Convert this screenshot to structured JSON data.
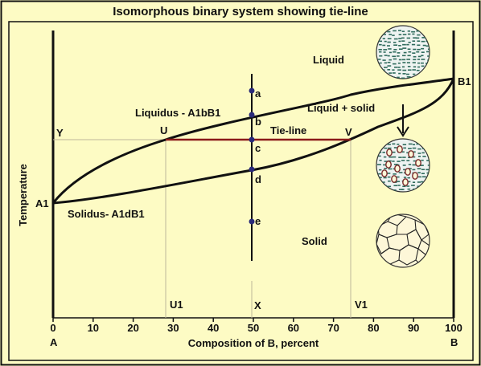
{
  "title": "Isomorphous binary system showing tie-line",
  "axes": {
    "x_label": "Composition of B, percent",
    "y_label": "Temperature",
    "x_ticks": [
      "0",
      "10",
      "20",
      "30",
      "40",
      "50",
      "60",
      "70",
      "80",
      "90",
      "100"
    ],
    "left_end_label": "A",
    "right_end_label": "B"
  },
  "points": {
    "a1": "A1",
    "b1": "B1",
    "u": "U",
    "v": "V",
    "y": "Y",
    "u1": "U1",
    "v1": "V1",
    "x": "X",
    "a": "a",
    "b": "b",
    "c": "c",
    "d": "d",
    "e": "e"
  },
  "curves": {
    "liquidus": "Liquidus - A1bB1",
    "solidus": "Solidus- A1dB1",
    "tie_line": "Tie-line"
  },
  "regions": {
    "liquid": "Liquid",
    "liquid_solid": "Liquid + solid",
    "solid": "Solid"
  },
  "composition": {
    "alloy_b_percent": 50,
    "u_b_percent": 28,
    "v_b_percent": 74
  },
  "colors": {
    "background": "#fdfbc4",
    "tie_line": "#8b1a1a",
    "point": "#2a2a7a",
    "liquid_blob": "#2f6b5c"
  },
  "icons": {
    "liquid_micro": "liquid-microstructure-icon",
    "two_phase_micro": "two-phase-microstructure-icon",
    "solid_micro": "solid-grain-microstructure-icon",
    "arrow": "down-arrow-icon"
  }
}
